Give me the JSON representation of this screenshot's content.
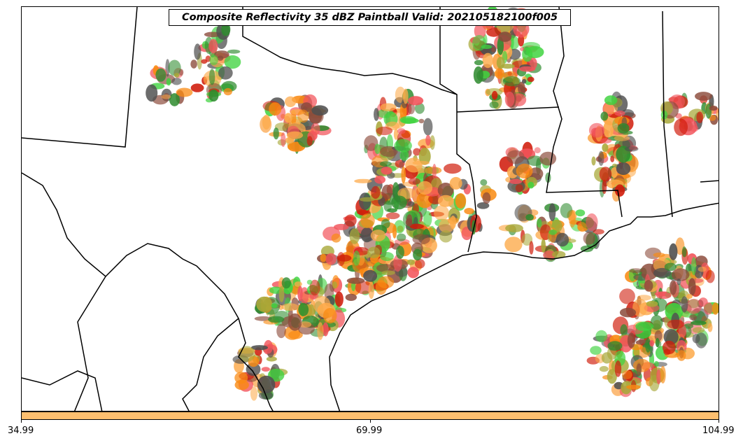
{
  "title": "Composite Reflectivity 35 dBZ Paintball Valid: 202105182100f005",
  "colorbar": {
    "color": "#fdbf6f",
    "ticks": [
      "34.99",
      "69.99",
      "104.99"
    ]
  },
  "palette": {
    "dark_red": "#d01c0b",
    "red": "#f2545b",
    "orange": "#f98a12",
    "light_orange": "#fdaa4a",
    "green": "#3fd33f",
    "dark_green": "#2e8b2e",
    "olive": "#a8a838",
    "grey": "#505050",
    "brown": "#8b4a3a"
  },
  "map": {
    "borders": "state and national boundaries, coastline",
    "region": "Texas, Louisiana, Mississippi and the Gulf Coast"
  }
}
